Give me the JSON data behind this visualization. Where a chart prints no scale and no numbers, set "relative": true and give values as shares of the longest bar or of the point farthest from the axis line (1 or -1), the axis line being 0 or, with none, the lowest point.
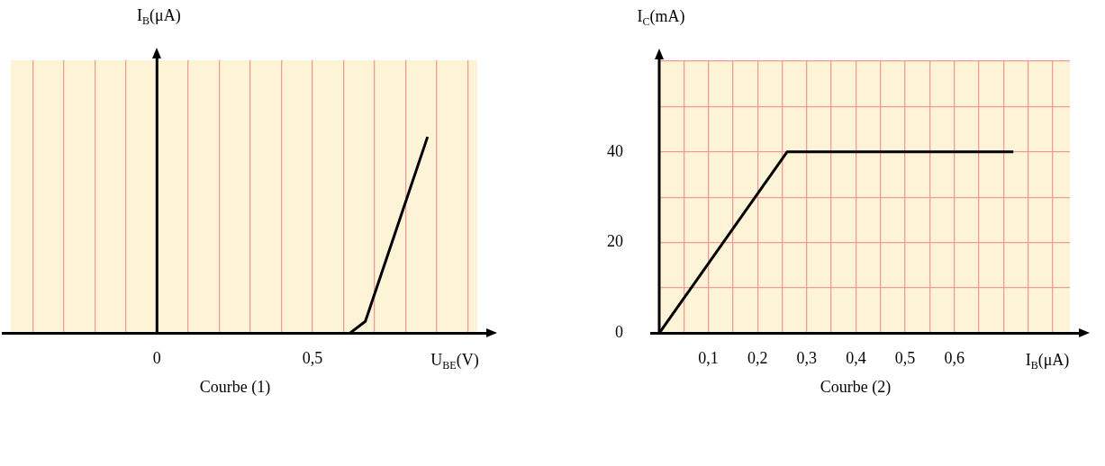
{
  "chart_data": [
    {
      "type": "line",
      "xlabel": "U$_{BE}$(V)",
      "ylabel": "I$_{B}$(μA)",
      "annotations": [
        "Courbe (1)"
      ],
      "relative": true,
      "marker": "none",
      "grid": "x",
      "tick_labels": "x",
      "x": [
        -0.42,
        0.62,
        0.67,
        0.87
      ],
      "series": [
        {
          "color": "#000000",
          "values": [
            0,
            0,
            0.06,
            1
          ]
        }
      ],
      "xlim": [
        -0.47,
        1.03
      ],
      "xticks": [
        {
          "value": -0.4,
          "label": null
        },
        {
          "value": -0.3,
          "label": null
        },
        {
          "value": -0.2,
          "label": null
        },
        {
          "value": -0.1,
          "label": null
        },
        0,
        {
          "value": 0.1,
          "label": null
        },
        {
          "value": 0.2,
          "label": null
        },
        {
          "value": 0.3,
          "label": null
        },
        {
          "value": 0.4,
          "label": null
        },
        {
          "value": 0.5,
          "label": "0,5"
        },
        {
          "value": 0.6,
          "label": null
        },
        {
          "value": 0.7,
          "label": null
        },
        {
          "value": 0.8,
          "label": null
        },
        {
          "value": 0.9,
          "label": null
        },
        {
          "value": 1.0,
          "label": null
        }
      ]
    },
    {
      "type": "line",
      "xlabel": "I$_{B}$(μA)",
      "ylabel": "I$_{C}$(mA)",
      "annotations": [
        "Courbe (2)"
      ],
      "marker": "none",
      "grid": true,
      "x": [
        0,
        0.26,
        0.72
      ],
      "series": [
        {
          "color": "#000000",
          "values": [
            0,
            40,
            40
          ]
        }
      ],
      "xlim": [
        0,
        0.835
      ],
      "ylim": [
        0,
        60
      ],
      "xticks": [
        {
          "value": 0,
          "label": null
        },
        {
          "value": 0.05,
          "label": null
        },
        {
          "value": 0.1,
          "label": "0,1"
        },
        {
          "value": 0.15,
          "label": null
        },
        {
          "value": 0.2,
          "label": "0,2"
        },
        {
          "value": 0.25,
          "label": null
        },
        {
          "value": 0.3,
          "label": "0,3"
        },
        {
          "value": 0.35,
          "label": null
        },
        {
          "value": 0.4,
          "label": "0,4"
        },
        {
          "value": 0.45,
          "label": null
        },
        {
          "value": 0.5,
          "label": "0,5"
        },
        {
          "value": 0.55,
          "label": null
        },
        {
          "value": 0.6,
          "label": "0,6"
        },
        {
          "value": 0.65,
          "label": null
        },
        {
          "value": 0.7,
          "label": null
        },
        {
          "value": 0.75,
          "label": null
        },
        {
          "value": 0.8,
          "label": null
        }
      ],
      "yticks": [
        0,
        {
          "value": 10,
          "label": null
        },
        20,
        {
          "value": 30,
          "label": null
        },
        40,
        {
          "value": 50,
          "label": null
        },
        {
          "value": 60,
          "label": null
        }
      ]
    }
  ]
}
